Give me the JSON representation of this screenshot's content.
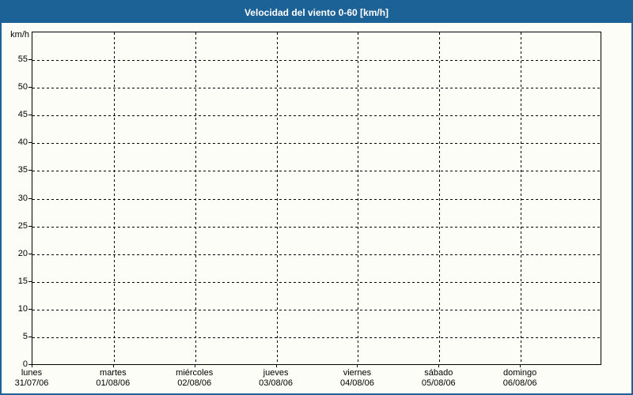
{
  "window": {
    "title": "Velocidad del viento 0-60 [km/h]"
  },
  "colors": {
    "titlebar_bg": "#1d6296",
    "titlebar_text": "#ffffff",
    "outer_border": "#1d6296",
    "background": "#fdfdf8",
    "axis": "#000000",
    "grid": "#000000"
  },
  "chart_data": {
    "type": "line",
    "title": "Velocidad del viento 0-60 [km/h]",
    "xlabel": "",
    "ylabel": "km/h",
    "ylim": [
      0,
      60
    ],
    "yticks": [
      0,
      5,
      10,
      15,
      20,
      25,
      30,
      35,
      40,
      45,
      50,
      55
    ],
    "grid": "dashed",
    "legend": "none",
    "categories": [
      {
        "day": "lunes",
        "date": "31/07/06"
      },
      {
        "day": "martes",
        "date": "01/08/06"
      },
      {
        "day": "miércoles",
        "date": "02/08/06"
      },
      {
        "day": "jueves",
        "date": "03/08/06"
      },
      {
        "day": "viernes",
        "date": "04/08/06"
      },
      {
        "day": "sábado",
        "date": "05/08/06"
      },
      {
        "day": "domingo",
        "date": "06/08/06"
      }
    ],
    "series": [],
    "note": "empty plot area - no wind speed data points are drawn"
  }
}
